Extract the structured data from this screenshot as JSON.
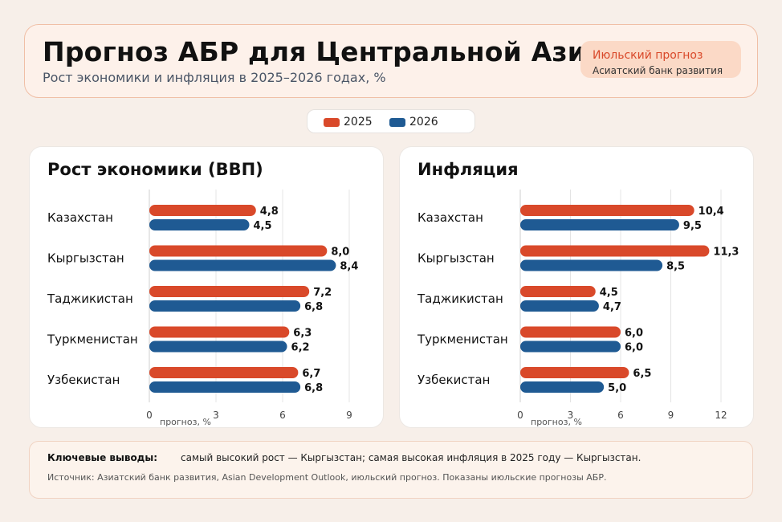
{
  "header": {
    "title": "Прогноз АБР для Центральной Азии",
    "subtitle": "Рост экономики и инфляция в 2025–2026 годах, %",
    "badge_title": "Июльский прогноз",
    "badge_sub": "Асиатский банк развития"
  },
  "legend": [
    {
      "label": "2025",
      "color": "#d9492a"
    },
    {
      "label": "2026",
      "color": "#1f5a93"
    }
  ],
  "chart_data": [
    {
      "type": "bar",
      "orientation": "horizontal",
      "title": "Рост экономики (ВВП)",
      "xlabel": "прогноз, %",
      "categories": [
        "Казахстан",
        "Кыргызстан",
        "Таджикистан",
        "Туркменистан",
        "Узбекистан"
      ],
      "series": [
        {
          "name": "2025",
          "values": [
            4.8,
            8.0,
            7.2,
            6.3,
            6.7
          ],
          "labels": [
            "4,8",
            "8,0",
            "7,2",
            "6,3",
            "6,7"
          ]
        },
        {
          "name": "2026",
          "values": [
            4.5,
            8.4,
            6.8,
            6.2,
            6.8
          ],
          "labels": [
            "4,5",
            "8,4",
            "6,8",
            "6,2",
            "6,8"
          ]
        }
      ],
      "xlim": [
        0,
        9
      ],
      "ticks": [
        0,
        3,
        6,
        9
      ],
      "grid": true
    },
    {
      "type": "bar",
      "orientation": "horizontal",
      "title": "Инфляция",
      "xlabel": "прогноз, %",
      "categories": [
        "Казахстан",
        "Кыргызстан",
        "Таджикистан",
        "Туркменистан",
        "Узбекистан"
      ],
      "series": [
        {
          "name": "2025",
          "values": [
            10.4,
            11.3,
            4.5,
            6.0,
            6.5
          ],
          "labels": [
            "10,4",
            "11,3",
            "4,5",
            "6,0",
            "6,5"
          ]
        },
        {
          "name": "2026",
          "values": [
            9.5,
            8.5,
            4.7,
            6.0,
            5.0
          ],
          "labels": [
            "9,5",
            "8,5",
            "4,7",
            "6,0",
            "5,0"
          ]
        }
      ],
      "xlim": [
        0,
        12
      ],
      "ticks": [
        0,
        3,
        6,
        9,
        12
      ],
      "grid": true
    }
  ],
  "footer": {
    "key_label": "Ключевые выводы:",
    "key_text": "самый высокий рост — Кыргызстан; самая высокая инфляция в 2025 году — Кыргызстан.",
    "source": "Источник: Азиатский банк развития, Asian Development Outlook, июльский прогноз. Показаны июльские прогнозы АБР."
  }
}
